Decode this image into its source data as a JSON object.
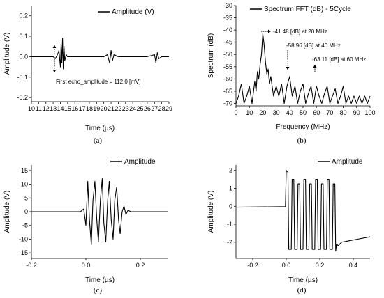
{
  "chart_data": [
    {
      "id": "a",
      "type": "line",
      "caption": "(a)",
      "xlabel": "Time (µs)",
      "ylabel": "Amplitude (V)",
      "xlim": [
        10,
        29
      ],
      "ylim": [
        -0.22,
        0.25
      ],
      "x_ticks": [
        "10",
        "11",
        "12",
        "13",
        "14",
        "15",
        "16",
        "17",
        "18",
        "19",
        "20",
        "21",
        "22",
        "23",
        "24",
        "25",
        "26",
        "27",
        "28",
        "29"
      ],
      "y_ticks": [
        "-0.2",
        "-0.1",
        "0.0",
        "0.1",
        "0.2"
      ],
      "legend": "Amplitude (V)",
      "annotations": [
        {
          "text": "First echo_amplitude = 112.0 [mV]"
        }
      ],
      "series": [
        {
          "name": "Amplitude (V)",
          "x": [
            10,
            12,
            13,
            13.3,
            13.6,
            13.8,
            14,
            14.1,
            14.2,
            14.3,
            14.4,
            14.5,
            14.6,
            14.8,
            15,
            17,
            20,
            20.5,
            20.8,
            21,
            21.2,
            21.4,
            22,
            26,
            27,
            27.2,
            27.4,
            27.6,
            28,
            29
          ],
          "y": [
            0,
            0,
            0,
            -0.01,
            0.01,
            0.03,
            -0.05,
            0.06,
            -0.03,
            0.09,
            -0.06,
            0.05,
            -0.02,
            0.01,
            0,
            0,
            0,
            0.01,
            -0.03,
            0.03,
            -0.02,
            0.01,
            0,
            0,
            0.01,
            -0.03,
            0.02,
            -0.01,
            0,
            0
          ]
        }
      ]
    },
    {
      "id": "b",
      "type": "line",
      "caption": "(b)",
      "xlabel": "Frequency (MHz)",
      "ylabel": "Spectrum (dB)",
      "xlim": [
        0,
        100
      ],
      "ylim": [
        -71,
        -30
      ],
      "x_ticks": [
        "0",
        "10",
        "20",
        "30",
        "40",
        "50",
        "60",
        "70",
        "80",
        "90",
        "100"
      ],
      "y_ticks": [
        "-30",
        "-35",
        "-40",
        "-45",
        "-50",
        "-55",
        "-60",
        "-65",
        "-70"
      ],
      "legend": "Spectrum FFT (dB) - 5Cycle",
      "annotations": [
        {
          "text": "-41.48 [dB] at 20 MHz"
        },
        {
          "text": "-58.96 [dB] at 40 MHz"
        },
        {
          "text": "-63.11 [dB] at 60 MHz"
        }
      ],
      "series": [
        {
          "name": "Spectrum FFT (dB) - 5Cycle",
          "x": [
            0,
            2,
            4,
            6,
            8,
            10,
            12,
            14,
            15,
            16,
            17,
            18,
            19,
            20,
            21,
            22,
            23,
            24,
            25,
            26,
            27,
            28,
            30,
            32,
            34,
            36,
            38,
            40,
            42,
            44,
            46,
            48,
            50,
            52,
            54,
            56,
            58,
            60,
            62,
            64,
            66,
            68,
            70,
            72,
            74,
            76,
            78,
            80,
            82,
            84,
            86,
            88,
            90,
            92,
            94,
            96,
            98,
            100
          ],
          "y": [
            -70,
            -67,
            -62,
            -70,
            -67,
            -63,
            -70,
            -61,
            -65,
            -57,
            -60,
            -54,
            -50,
            -41.5,
            -46,
            -53,
            -58,
            -56,
            -62,
            -59,
            -63,
            -67,
            -63,
            -67,
            -62,
            -70,
            -63,
            -59,
            -67,
            -63,
            -70,
            -65,
            -62,
            -70,
            -66,
            -63,
            -70,
            -63,
            -67,
            -70,
            -66,
            -63,
            -70,
            -67,
            -64,
            -70,
            -67,
            -63,
            -70,
            -67,
            -70,
            -67,
            -70,
            -67,
            -70,
            -67,
            -70,
            -67
          ]
        }
      ]
    },
    {
      "id": "c",
      "type": "line",
      "caption": "(c)",
      "xlabel": "Time (µs)",
      "ylabel": "Amplitude (V)",
      "xlim": [
        -0.2,
        0.3
      ],
      "ylim": [
        -17,
        17
      ],
      "x_ticks": [
        "-0.2",
        "0.0",
        "0.2"
      ],
      "x_tick_values": [
        -0.2,
        0.0,
        0.2
      ],
      "y_ticks": [
        "15",
        "10",
        "5",
        "0",
        "-5",
        "-10",
        "-15"
      ],
      "legend": "Amplitude",
      "series": [
        {
          "name": "Amplitude",
          "x": [
            -0.2,
            -0.02,
            -0.008,
            0,
            0.007,
            0.013,
            0.02,
            0.026,
            0.033,
            0.04,
            0.046,
            0.053,
            0.06,
            0.066,
            0.073,
            0.08,
            0.086,
            0.093,
            0.1,
            0.106,
            0.113,
            0.12,
            0.126,
            0.133,
            0.14,
            0.147,
            0.155,
            0.165,
            0.3
          ],
          "y": [
            0,
            0,
            1,
            -5,
            11,
            -3,
            -12,
            4,
            11,
            -3,
            -11,
            4,
            12,
            -4,
            -11,
            4,
            11,
            -3,
            -10,
            4,
            9,
            -3,
            -8,
            0,
            2,
            -1,
            0.5,
            0,
            0
          ]
        }
      ]
    },
    {
      "id": "d",
      "type": "line",
      "caption": "(d)",
      "xlabel": "Time (µs)",
      "ylabel": "Amplitude (V)",
      "xlim": [
        -0.3,
        0.5
      ],
      "ylim": [
        -2.9,
        2.3
      ],
      "x_ticks": [
        "-0.2",
        "0.0",
        "0.2",
        "0.4"
      ],
      "x_tick_values": [
        -0.2,
        0.0,
        0.2,
        0.4
      ],
      "y_ticks": [
        "2",
        "1",
        "0",
        "-1",
        "-2"
      ],
      "legend": "Amplitude",
      "series": [
        {
          "name": "Amplitude",
          "x": [
            -0.3,
            -0.005,
            0.0,
            0.01,
            0.015,
            0.03,
            0.035,
            0.045,
            0.05,
            0.065,
            0.07,
            0.08,
            0.085,
            0.1,
            0.105,
            0.115,
            0.12,
            0.135,
            0.14,
            0.15,
            0.155,
            0.17,
            0.175,
            0.185,
            0.19,
            0.205,
            0.21,
            0.22,
            0.225,
            0.24,
            0.245,
            0.255,
            0.26,
            0.275,
            0.28,
            0.29,
            0.295,
            0.3,
            0.31,
            0.33,
            0.5
          ],
          "y": [
            -0.05,
            -0.02,
            2.0,
            1.9,
            -2.4,
            -2.4,
            1.5,
            1.5,
            -2.4,
            -2.4,
            1.25,
            1.25,
            -2.4,
            -2.4,
            1.5,
            1.5,
            -2.4,
            -2.4,
            1.25,
            1.25,
            -2.4,
            -2.4,
            1.5,
            1.5,
            -2.4,
            -2.4,
            1.25,
            1.25,
            -2.4,
            -2.4,
            1.5,
            1.5,
            -2.4,
            -2.4,
            1.25,
            1.25,
            -2.5,
            -2.1,
            -2.2,
            -2.0,
            -1.7
          ]
        }
      ]
    }
  ]
}
